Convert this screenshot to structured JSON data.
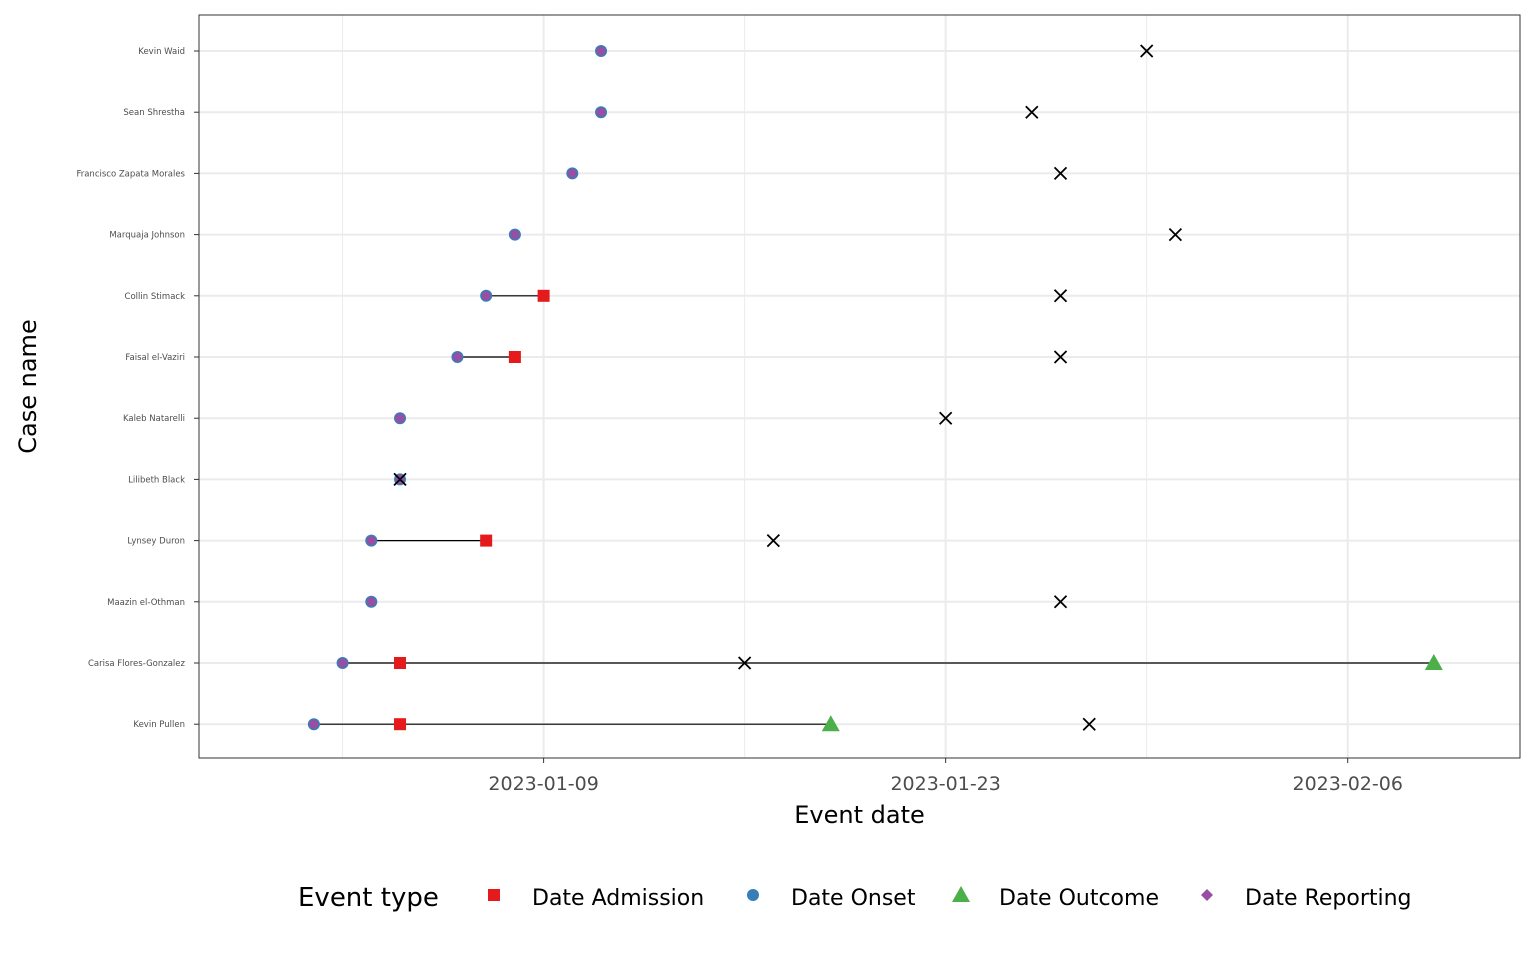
{
  "chart_data": {
    "type": "scatter",
    "title": "",
    "xlabel": "Event date",
    "ylabel": "Case name",
    "x_scale": "date",
    "xlim": [
      "2022-12-28",
      "2023-02-12"
    ],
    "x_ticks": [
      "2023-01-09",
      "2023-01-23",
      "2023-02-06"
    ],
    "grid": true,
    "legend": {
      "position": "bottom",
      "title": "Event type",
      "items": [
        {
          "label": "Date Admission",
          "shape": "square",
          "color": "#e41a1c"
        },
        {
          "label": "Date Onset",
          "shape": "circle",
          "color": "#377eb8"
        },
        {
          "label": "Date Outcome",
          "shape": "triangle",
          "color": "#4daf4a"
        },
        {
          "label": "Date Reporting",
          "shape": "diamond",
          "color": "#984ea3"
        }
      ]
    },
    "outcome_marker": {
      "shape": "cross",
      "color": "#000000"
    },
    "categories": [
      "Kevin Waid",
      "Sean Shrestha",
      "Francisco Zapata Morales",
      "Marquaja Johnson",
      "Collin Stimack",
      "Faisal el-Vaziri",
      "Kaleb Natarelli",
      "Lilibeth Black",
      "Lynsey Duron",
      "Maazin el-Othman",
      "Carisa Flores-Gonzalez",
      "Kevin Pullen"
    ],
    "cases": [
      {
        "name": "Kevin Waid",
        "onset": "2023-01-11",
        "reporting": "2023-01-11",
        "admission": null,
        "outcome": null,
        "cross": "2023-01-30"
      },
      {
        "name": "Sean Shrestha",
        "onset": "2023-01-11",
        "reporting": "2023-01-11",
        "admission": null,
        "outcome": null,
        "cross": "2023-01-26"
      },
      {
        "name": "Francisco Zapata Morales",
        "onset": "2023-01-10",
        "reporting": "2023-01-10",
        "admission": null,
        "outcome": null,
        "cross": "2023-01-27"
      },
      {
        "name": "Marquaja Johnson",
        "onset": "2023-01-08",
        "reporting": "2023-01-08",
        "admission": null,
        "outcome": null,
        "cross": "2023-01-31"
      },
      {
        "name": "Collin Stimack",
        "onset": "2023-01-07",
        "reporting": "2023-01-07",
        "admission": "2023-01-09",
        "outcome": null,
        "cross": "2023-01-27"
      },
      {
        "name": "Faisal el-Vaziri",
        "onset": "2023-01-06",
        "reporting": "2023-01-06",
        "admission": "2023-01-08",
        "outcome": null,
        "cross": "2023-01-27"
      },
      {
        "name": "Kaleb Natarelli",
        "onset": "2023-01-04",
        "reporting": "2023-01-04",
        "admission": null,
        "outcome": null,
        "cross": "2023-01-23"
      },
      {
        "name": "Lilibeth Black",
        "onset": "2023-01-04",
        "reporting": "2023-01-04",
        "admission": null,
        "outcome": null,
        "cross": "2023-01-04"
      },
      {
        "name": "Lynsey Duron",
        "onset": "2023-01-03",
        "reporting": "2023-01-03",
        "admission": "2023-01-07",
        "outcome": null,
        "cross": "2023-01-17"
      },
      {
        "name": "Maazin el-Othman",
        "onset": "2023-01-03",
        "reporting": "2023-01-03",
        "admission": null,
        "outcome": null,
        "cross": "2023-01-27"
      },
      {
        "name": "Carisa Flores-Gonzalez",
        "onset": "2023-01-02",
        "reporting": "2023-01-02",
        "admission": "2023-01-04",
        "outcome": "2023-02-09",
        "cross": "2023-01-16"
      },
      {
        "name": "Kevin Pullen",
        "onset": "2023-01-01",
        "reporting": "2023-01-01",
        "admission": "2023-01-04",
        "outcome": "2023-01-19",
        "cross": "2023-01-28"
      }
    ]
  }
}
